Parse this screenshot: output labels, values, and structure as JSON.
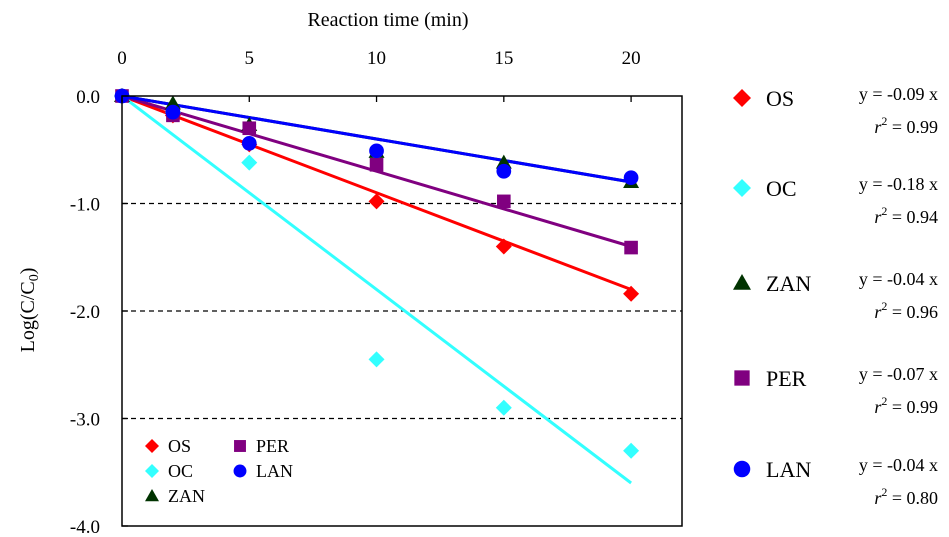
{
  "chart_data": {
    "type": "scatter",
    "xlabel": "Reaction time (min)",
    "ylabel": "Log(C/C0)",
    "xlim": [
      0,
      22
    ],
    "ylim": [
      -4,
      0
    ],
    "x_ticks": [
      0,
      5,
      10,
      15,
      20
    ],
    "x_tick_labels": [
      "0",
      "5",
      "10",
      "15",
      "20"
    ],
    "y_ticks": [
      0,
      -1,
      -2,
      -3,
      -4
    ],
    "y_tick_labels": [
      "0.0",
      "-1.0",
      "-2.0",
      "-3.0",
      "-4.0"
    ],
    "x_axis_position": "top",
    "grid": {
      "horizontal_dashed_at": [
        -1,
        -2,
        -3
      ]
    },
    "legend": {
      "placement": "bottom-left inside plot"
    },
    "series": [
      {
        "name": "OS",
        "marker": "diamond",
        "color": "#ff0000",
        "x": [
          0,
          2,
          5,
          10,
          15,
          20
        ],
        "y": [
          0,
          -0.18,
          -0.45,
          -0.98,
          -1.4,
          -1.84
        ],
        "fit": {
          "slope": -0.09,
          "equation": "y = -0.09 x",
          "r2_label": "r",
          "r2_sup": "2",
          "r2_value": " = 0.99"
        }
      },
      {
        "name": "OC",
        "marker": "diamond",
        "color": "#33ffff",
        "x": [
          0,
          2,
          5,
          10,
          15,
          20
        ],
        "y": [
          0,
          -0.15,
          -0.62,
          -2.45,
          -2.9,
          -3.3
        ],
        "fit": {
          "slope": -0.18,
          "equation": "y = -0.18 x",
          "r2_label": "r",
          "r2_sup": "2",
          "r2_value": " = 0.94"
        }
      },
      {
        "name": "ZAN",
        "marker": "triangle",
        "color": "#003300",
        "x": [
          0,
          2,
          5,
          10,
          15,
          20
        ],
        "y": [
          0,
          -0.07,
          -0.27,
          -0.52,
          -0.62,
          -0.8
        ],
        "fit": {
          "slope": -0.04,
          "equation": "y = -0.04 x",
          "r2_label": "r",
          "r2_sup": "2",
          "r2_value": " = 0.96"
        }
      },
      {
        "name": "PER",
        "marker": "square",
        "color": "#800080",
        "x": [
          0,
          2,
          5,
          10,
          15,
          20
        ],
        "y": [
          0,
          -0.18,
          -0.3,
          -0.64,
          -0.98,
          -1.41
        ],
        "fit": {
          "slope": -0.07,
          "equation": "y = -0.07 x",
          "r2_label": "r",
          "r2_sup": "2",
          "r2_value": " = 0.99"
        }
      },
      {
        "name": "LAN",
        "marker": "circle",
        "color": "#0000ff",
        "x": [
          0,
          2,
          5,
          10,
          15,
          20
        ],
        "y": [
          0,
          -0.15,
          -0.44,
          -0.51,
          -0.7,
          -0.76
        ],
        "fit": {
          "slope": -0.04,
          "equation": "y = -0.04 x",
          "r2_label": "r",
          "r2_sup": "2",
          "r2_value": " = 0.80"
        }
      }
    ]
  }
}
